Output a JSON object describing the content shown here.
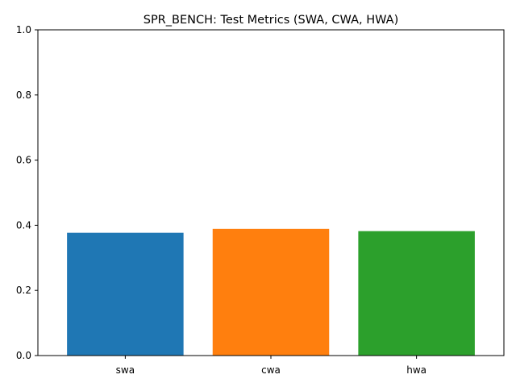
{
  "chart_data": {
    "type": "bar",
    "title": "SPR_BENCH: Test Metrics (SWA, CWA, HWA)",
    "xlabel": "",
    "ylabel": "",
    "categories": [
      "swa",
      "cwa",
      "hwa"
    ],
    "values": [
      0.377,
      0.389,
      0.382
    ],
    "colors": [
      "#1f77b4",
      "#ff7f0e",
      "#2ca02c"
    ],
    "ylim": [
      0,
      1.0
    ],
    "yticks": [
      "0.0",
      "0.2",
      "0.4",
      "0.6",
      "0.8",
      "1.0"
    ],
    "ytick_values": [
      0,
      0.2,
      0.4,
      0.6,
      0.8,
      1.0
    ],
    "grid": false,
    "legend": false
  }
}
